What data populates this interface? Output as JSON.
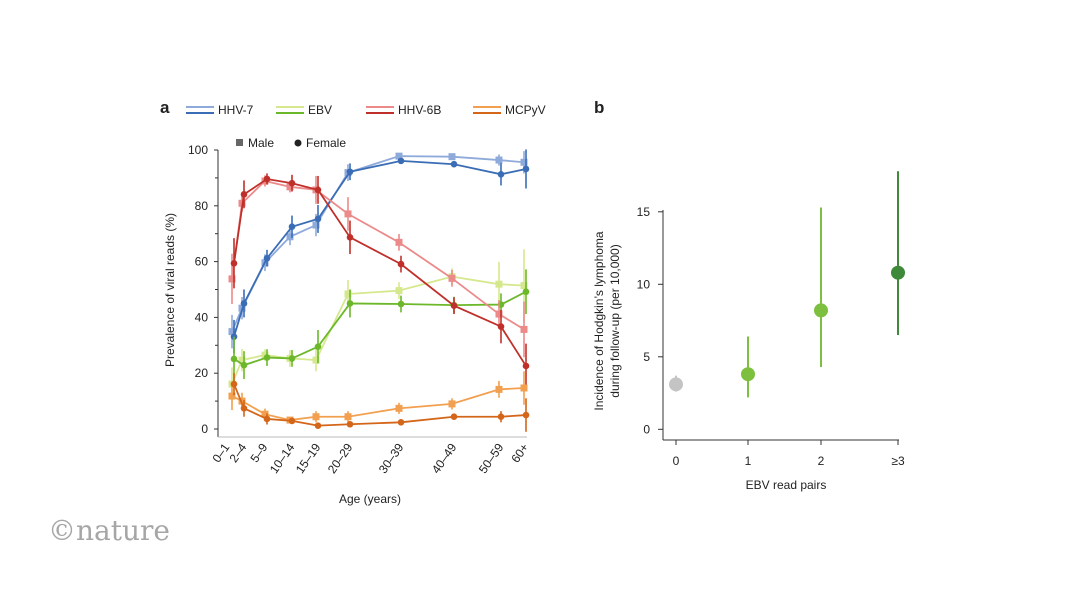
{
  "logo": "©nature",
  "chart_data": [
    {
      "panel": "a",
      "type": "line",
      "ylabel": "Prevalence of viral reads (%)",
      "xlabel": "Age (years)",
      "ylim": [
        0,
        100
      ],
      "yticks": [
        0,
        20,
        40,
        60,
        80,
        100
      ],
      "categories": [
        "0–1",
        "2–4",
        "5–9",
        "10–14",
        "15–19",
        "20–29",
        "30–39",
        "40–49",
        "50–59",
        "60+"
      ],
      "sex_legend": {
        "male": "Male",
        "female": "Female"
      },
      "series": [
        {
          "name": "HHV-7",
          "sex": "male",
          "color": "#8eaadb",
          "values": [
            34.9,
            43.3,
            59.6,
            68.9,
            73.1,
            91.9,
            97.8,
            97.6,
            96.4,
            95.6
          ],
          "err": [
            6,
            4,
            3,
            3,
            4,
            3,
            1,
            1,
            2,
            4
          ]
        },
        {
          "name": "HHV-7",
          "sex": "female",
          "color": "#3a6db5",
          "values": [
            33.1,
            45.0,
            61.2,
            72.5,
            75.3,
            92.2,
            96.1,
            94.9,
            91.3,
            93.2
          ],
          "err": [
            6,
            5,
            3,
            4,
            5,
            3,
            1,
            1,
            4,
            7
          ]
        },
        {
          "name": "EBV",
          "sex": "male",
          "color": "#d5e88e",
          "values": [
            16.1,
            24.7,
            26.5,
            25.3,
            24.7,
            48.4,
            49.6,
            54.6,
            51.9,
            51.4
          ],
          "err": [
            6,
            4,
            2,
            3,
            4,
            5,
            3,
            3,
            8,
            13
          ]
        },
        {
          "name": "EBV",
          "sex": "female",
          "color": "#6cb82a",
          "values": [
            25.1,
            22.9,
            25.6,
            25.3,
            29.5,
            45.0,
            44.8,
            44.4,
            44.6,
            49.2
          ],
          "err": [
            8,
            5,
            3,
            3,
            6,
            5,
            3,
            3,
            4,
            8
          ]
        },
        {
          "name": "HHV-6B",
          "sex": "male",
          "color": "#ec8a8a",
          "values": [
            53.8,
            80.9,
            88.9,
            86.8,
            85.7,
            77.1,
            66.9,
            54.0,
            41.2,
            35.7
          ],
          "err": [
            9,
            3,
            2,
            2,
            5,
            6,
            3,
            3,
            5,
            10
          ]
        },
        {
          "name": "HHV-6B",
          "sex": "female",
          "color": "#c0302a",
          "values": [
            59.4,
            84.1,
            89.6,
            88.1,
            85.7,
            68.7,
            59.1,
            44.2,
            36.7,
            22.6
          ],
          "err": [
            9,
            5,
            2,
            3,
            5,
            6,
            3,
            3,
            6,
            8
          ]
        },
        {
          "name": "MCPyV",
          "sex": "male",
          "color": "#f2a04f",
          "values": [
            11.8,
            10.0,
            5.3,
            3.2,
            4.4,
            4.4,
            7.4,
            9.0,
            14.2,
            14.7
          ],
          "err": [
            5,
            3,
            2,
            1,
            2,
            2,
            2,
            2,
            3,
            6
          ]
        },
        {
          "name": "MCPyV",
          "sex": "female",
          "color": "#d4661a",
          "values": [
            16.1,
            7.4,
            3.6,
            2.9,
            1.2,
            1.7,
            2.4,
            4.4,
            4.4,
            5.0
          ],
          "err": [
            4,
            3,
            2,
            1,
            1,
            1,
            1,
            1,
            2,
            6
          ]
        }
      ],
      "legend": [
        {
          "name": "HHV-7",
          "light": "#8eaadb",
          "dark": "#3a6db5"
        },
        {
          "name": "EBV",
          "light": "#d5e88e",
          "dark": "#6cb82a"
        },
        {
          "name": "HHV-6B",
          "light": "#ec8a8a",
          "dark": "#c0302a"
        },
        {
          "name": "MCPyV",
          "light": "#f2a04f",
          "dark": "#d4661a"
        }
      ],
      "legend_placement": "top"
    },
    {
      "panel": "b",
      "type": "scatter",
      "ylabel": [
        "Incidence of Hodgkin’s lymphoma",
        "during follow-up (per 10,000)"
      ],
      "xlabel": "EBV read pairs",
      "ylim": [
        0,
        17.8
      ],
      "yticks": [
        0,
        5,
        10,
        15
      ],
      "categories": [
        "0",
        "1",
        "2",
        "≥3"
      ],
      "values": [
        3.1,
        3.8,
        8.2,
        10.8
      ],
      "lower": [
        2.6,
        2.2,
        4.3,
        6.5
      ],
      "upper": [
        3.7,
        6.4,
        15.3,
        17.8
      ],
      "colors": [
        "#c4c4c4",
        "#7dbf3f",
        "#7dbf3f",
        "#3f8a3a"
      ]
    }
  ]
}
